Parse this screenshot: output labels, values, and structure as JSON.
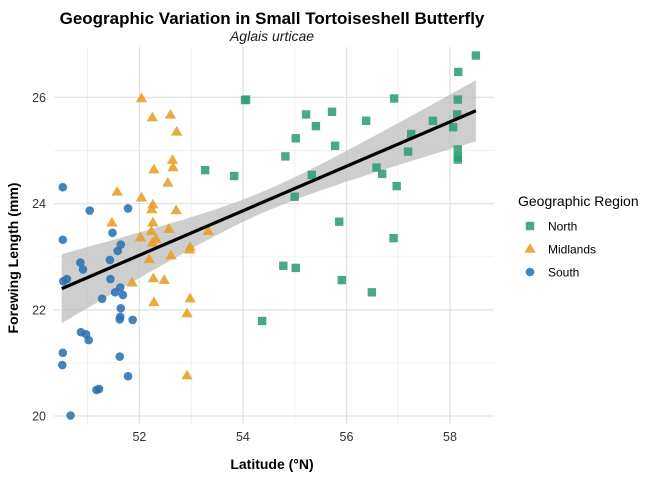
{
  "chart_data": {
    "type": "scatter",
    "title": "Geographic Variation in Small Tortoiseshell Butterfly",
    "subtitle": "Aglais urticae",
    "xlabel": "Latitude (°N)",
    "ylabel": "Forewing Length (mm)",
    "xlim": [
      50.35,
      58.85
    ],
    "ylim": [
      19.85,
      26.95
    ],
    "xticks": [
      52,
      54,
      56,
      58
    ],
    "yticks": [
      20,
      22,
      24,
      26
    ],
    "grid": true,
    "legend": {
      "title": "Geographic Region",
      "placement": "right"
    },
    "trend": {
      "type": "linear",
      "x": [
        50.5,
        58.5
      ],
      "y": [
        22.4,
        25.75
      ],
      "ci_lower": [
        21.75,
        25.2
      ],
      "ci_upper": [
        23.05,
        26.35
      ],
      "ci_center": [
        54.4,
        24.05
      ],
      "ci_center_halfwidth": 0.2,
      "color": "#000000",
      "ci_color": "#bebebe"
    },
    "series": [
      {
        "name": "North",
        "marker": "square",
        "color": "#2e9e74",
        "points": [
          [
            54.06,
            25.96
          ],
          [
            54.04,
            25.95
          ],
          [
            55.22,
            25.68
          ],
          [
            55.72,
            25.73
          ],
          [
            56.92,
            25.98
          ],
          [
            58.5,
            26.79
          ],
          [
            58.16,
            26.48
          ],
          [
            58.15,
            25.96
          ],
          [
            55.41,
            25.46
          ],
          [
            56.38,
            25.56
          ],
          [
            57.67,
            25.56
          ],
          [
            58.06,
            25.44
          ],
          [
            58.14,
            25.68
          ],
          [
            57.25,
            25.31
          ],
          [
            55.02,
            25.23
          ],
          [
            55.78,
            25.09
          ],
          [
            57.19,
            24.98
          ],
          [
            58.15,
            25.02
          ],
          [
            58.15,
            24.83
          ],
          [
            58.15,
            24.88
          ],
          [
            54.82,
            24.89
          ],
          [
            53.27,
            24.63
          ],
          [
            53.83,
            24.52
          ],
          [
            55.33,
            24.54
          ],
          [
            56.58,
            24.68
          ],
          [
            56.69,
            24.56
          ],
          [
            56.97,
            24.33
          ],
          [
            55.0,
            24.13
          ],
          [
            55.86,
            23.66
          ],
          [
            56.91,
            23.35
          ],
          [
            54.78,
            22.83
          ],
          [
            55.02,
            22.79
          ],
          [
            55.91,
            22.56
          ],
          [
            56.49,
            22.33
          ],
          [
            54.37,
            21.79
          ]
        ]
      },
      {
        "name": "Midlands",
        "marker": "triangle",
        "color": "#e69f25",
        "points": [
          [
            52.04,
            25.98
          ],
          [
            52.25,
            25.62
          ],
          [
            52.6,
            25.67
          ],
          [
            52.72,
            25.35
          ],
          [
            52.64,
            24.82
          ],
          [
            52.28,
            24.64
          ],
          [
            52.65,
            24.68
          ],
          [
            52.55,
            24.39
          ],
          [
            51.57,
            24.22
          ],
          [
            52.04,
            24.11
          ],
          [
            52.26,
            23.98
          ],
          [
            52.24,
            23.89
          ],
          [
            52.71,
            23.87
          ],
          [
            51.47,
            23.64
          ],
          [
            52.26,
            23.64
          ],
          [
            52.57,
            23.52
          ],
          [
            52.23,
            23.48
          ],
          [
            53.33,
            23.48
          ],
          [
            52.02,
            23.36
          ],
          [
            52.32,
            23.33
          ],
          [
            52.25,
            23.26
          ],
          [
            52.98,
            23.18
          ],
          [
            52.97,
            23.13
          ],
          [
            52.61,
            23.02
          ],
          [
            52.19,
            22.95
          ],
          [
            51.86,
            22.51
          ],
          [
            52.27,
            22.59
          ],
          [
            52.48,
            22.56
          ],
          [
            52.98,
            22.21
          ],
          [
            52.28,
            22.14
          ],
          [
            52.92,
            21.93
          ],
          [
            52.92,
            20.76
          ]
        ]
      },
      {
        "name": "South",
        "marker": "circle",
        "color": "#2c72b0",
        "points": [
          [
            50.52,
            24.31
          ],
          [
            51.04,
            23.87
          ],
          [
            51.78,
            23.91
          ],
          [
            51.48,
            23.45
          ],
          [
            50.52,
            23.32
          ],
          [
            51.64,
            23.23
          ],
          [
            51.58,
            23.11
          ],
          [
            51.43,
            22.94
          ],
          [
            50.86,
            22.89
          ],
          [
            50.91,
            22.76
          ],
          [
            50.6,
            22.58
          ],
          [
            50.53,
            22.54
          ],
          [
            51.44,
            22.58
          ],
          [
            51.63,
            22.42
          ],
          [
            51.53,
            22.33
          ],
          [
            51.68,
            22.28
          ],
          [
            51.28,
            22.21
          ],
          [
            51.64,
            22.03
          ],
          [
            51.63,
            21.87
          ],
          [
            51.87,
            21.81
          ],
          [
            51.62,
            21.82
          ],
          [
            50.87,
            21.58
          ],
          [
            50.97,
            21.54
          ],
          [
            51.02,
            21.43
          ],
          [
            50.52,
            21.19
          ],
          [
            51.62,
            21.12
          ],
          [
            50.51,
            20.96
          ],
          [
            51.78,
            20.75
          ],
          [
            51.22,
            20.51
          ],
          [
            51.17,
            20.49
          ],
          [
            50.67,
            20.01
          ]
        ]
      }
    ]
  }
}
